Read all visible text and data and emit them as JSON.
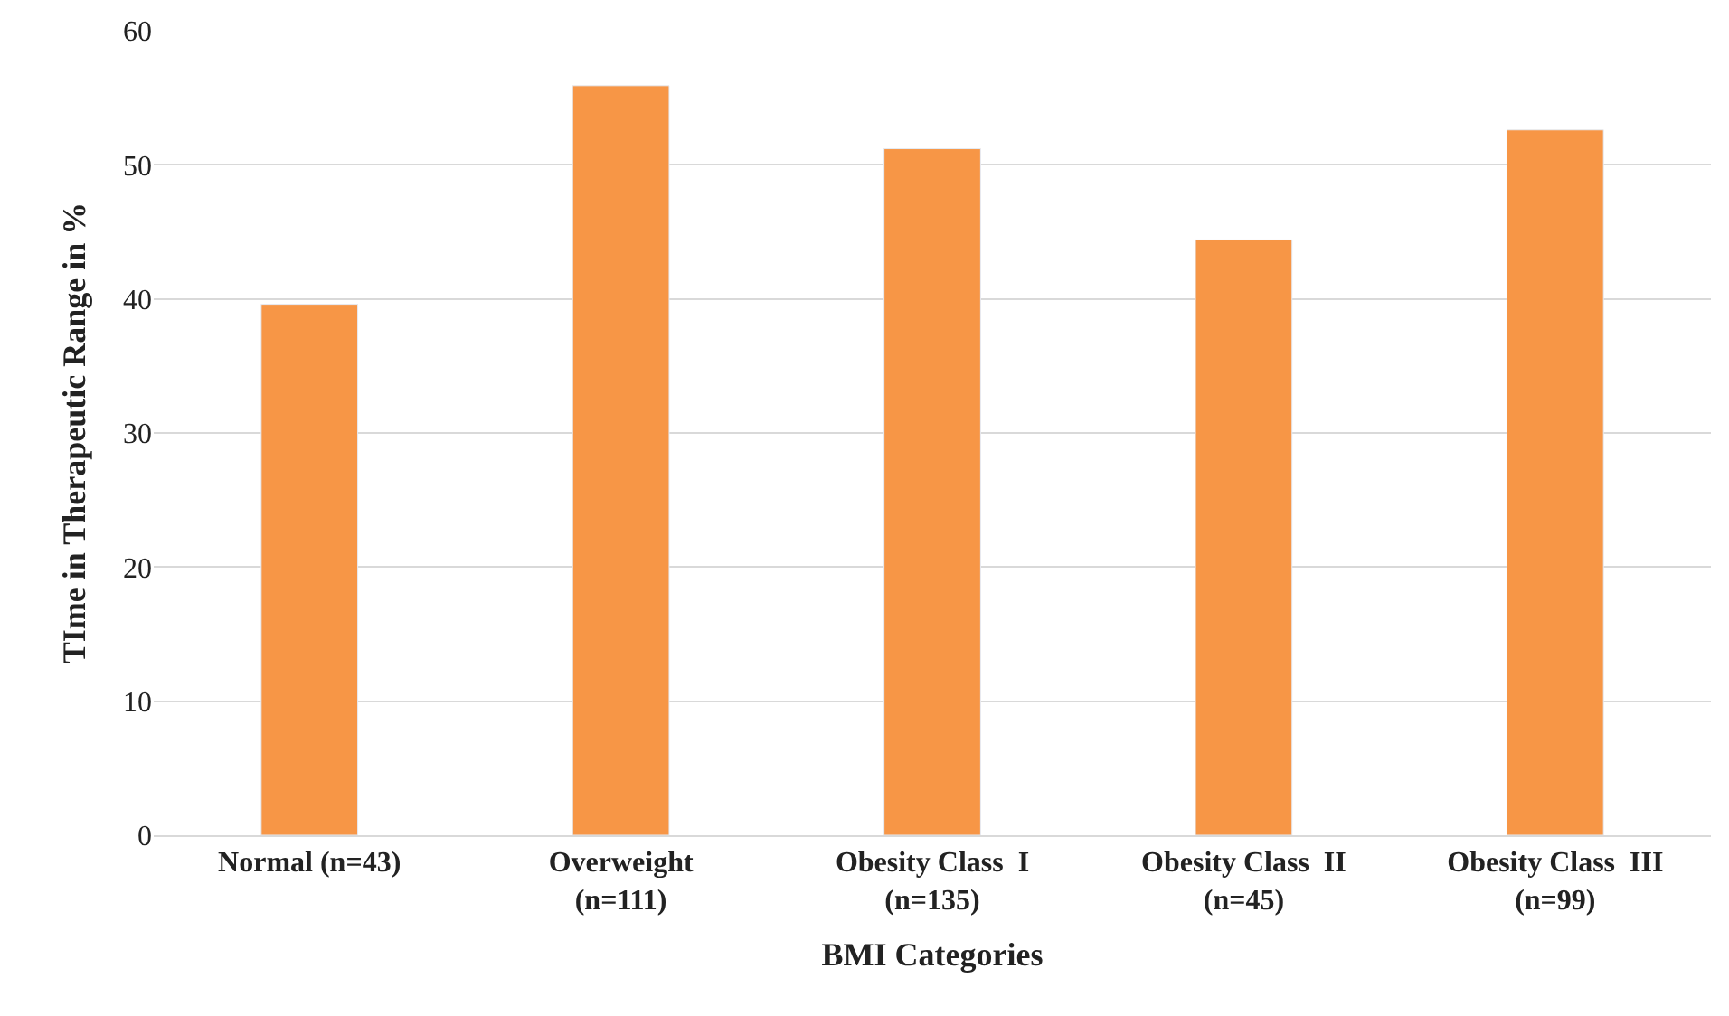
{
  "chart_data": {
    "type": "bar",
    "xlabel": "BMI Categories",
    "ylabel": "TIme in Therapeutic Range in %",
    "categories": [
      "Normal (n=43)",
      "Overweight\n(n=111)",
      "Obesity Class  I\n(n=135)",
      "Obesity Class  II\n(n=45)",
      "Obesity Class  III\n(n=99)"
    ],
    "values": [
      39.6,
      55.9,
      51.2,
      44.4,
      52.6
    ],
    "color": "#f79646",
    "ylim": [
      0,
      60
    ],
    "yticks": [
      0,
      10,
      20,
      30,
      40,
      50,
      60
    ],
    "grid": "y",
    "legend": false
  }
}
